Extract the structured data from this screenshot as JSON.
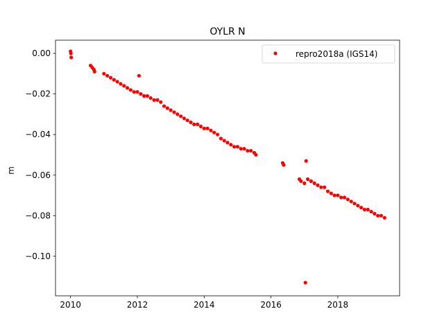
{
  "chart_data": {
    "type": "scatter",
    "title": "OYLR N",
    "xlabel": "",
    "ylabel": "m",
    "xlim": [
      2009.55,
      2019.85
    ],
    "ylim": [
      -0.1195,
      0.0065
    ],
    "x_ticks": [
      2010,
      2012,
      2014,
      2016,
      2018
    ],
    "x_tick_labels": [
      "2010",
      "2012",
      "2014",
      "2016",
      "2018"
    ],
    "y_ticks": [
      0.0,
      -0.02,
      -0.04,
      -0.06,
      -0.08,
      -0.1
    ],
    "y_tick_labels": [
      "0.00",
      "−0.02",
      "−0.04",
      "−0.06",
      "−0.08",
      "−0.10"
    ],
    "grid": false,
    "legend_position": "top-right",
    "series": [
      {
        "name": "repro2018a (IGS14)",
        "color": "#ff0000",
        "marker": "circle",
        "x": [
          2010.0,
          2010.01,
          2010.02,
          2010.6,
          2010.65,
          2010.7,
          2010.72,
          2011.0,
          2011.1,
          2011.2,
          2011.3,
          2011.4,
          2011.5,
          2011.6,
          2011.7,
          2011.8,
          2011.9,
          2012.0,
          2012.05,
          2012.1,
          2012.2,
          2012.3,
          2012.4,
          2012.5,
          2012.6,
          2012.7,
          2012.8,
          2012.9,
          2013.0,
          2013.1,
          2013.2,
          2013.3,
          2013.4,
          2013.5,
          2013.6,
          2013.7,
          2013.8,
          2013.9,
          2014.0,
          2014.1,
          2014.2,
          2014.3,
          2014.4,
          2014.5,
          2014.6,
          2014.7,
          2014.8,
          2014.9,
          2015.0,
          2015.1,
          2015.2,
          2015.3,
          2015.4,
          2015.5,
          2015.55,
          2016.35,
          2016.38,
          2016.85,
          2016.9,
          2017.0,
          2017.03,
          2017.05,
          2017.1,
          2017.2,
          2017.3,
          2017.4,
          2017.5,
          2017.6,
          2017.7,
          2017.8,
          2017.9,
          2018.0,
          2018.1,
          2018.2,
          2018.3,
          2018.4,
          2018.5,
          2018.6,
          2018.7,
          2018.8,
          2018.9,
          2019.0,
          2019.1,
          2019.2,
          2019.3,
          2019.4
        ],
        "y": [
          0.001,
          0.0,
          -0.002,
          -0.006,
          -0.007,
          -0.008,
          -0.009,
          -0.01,
          -0.011,
          -0.012,
          -0.013,
          -0.014,
          -0.015,
          -0.016,
          -0.017,
          -0.018,
          -0.019,
          -0.019,
          -0.011,
          -0.02,
          -0.021,
          -0.021,
          -0.022,
          -0.023,
          -0.023,
          -0.024,
          -0.026,
          -0.027,
          -0.028,
          -0.029,
          -0.03,
          -0.031,
          -0.032,
          -0.033,
          -0.034,
          -0.035,
          -0.035,
          -0.036,
          -0.037,
          -0.037,
          -0.038,
          -0.039,
          -0.04,
          -0.042,
          -0.043,
          -0.044,
          -0.045,
          -0.046,
          -0.046,
          -0.047,
          -0.047,
          -0.048,
          -0.048,
          -0.049,
          -0.05,
          -0.054,
          -0.055,
          -0.062,
          -0.063,
          -0.064,
          -0.113,
          -0.053,
          -0.062,
          -0.063,
          -0.064,
          -0.065,
          -0.066,
          -0.066,
          -0.068,
          -0.069,
          -0.07,
          -0.07,
          -0.071,
          -0.071,
          -0.072,
          -0.073,
          -0.074,
          -0.075,
          -0.076,
          -0.077,
          -0.077,
          -0.078,
          -0.079,
          -0.08,
          -0.08,
          -0.081
        ]
      }
    ]
  }
}
